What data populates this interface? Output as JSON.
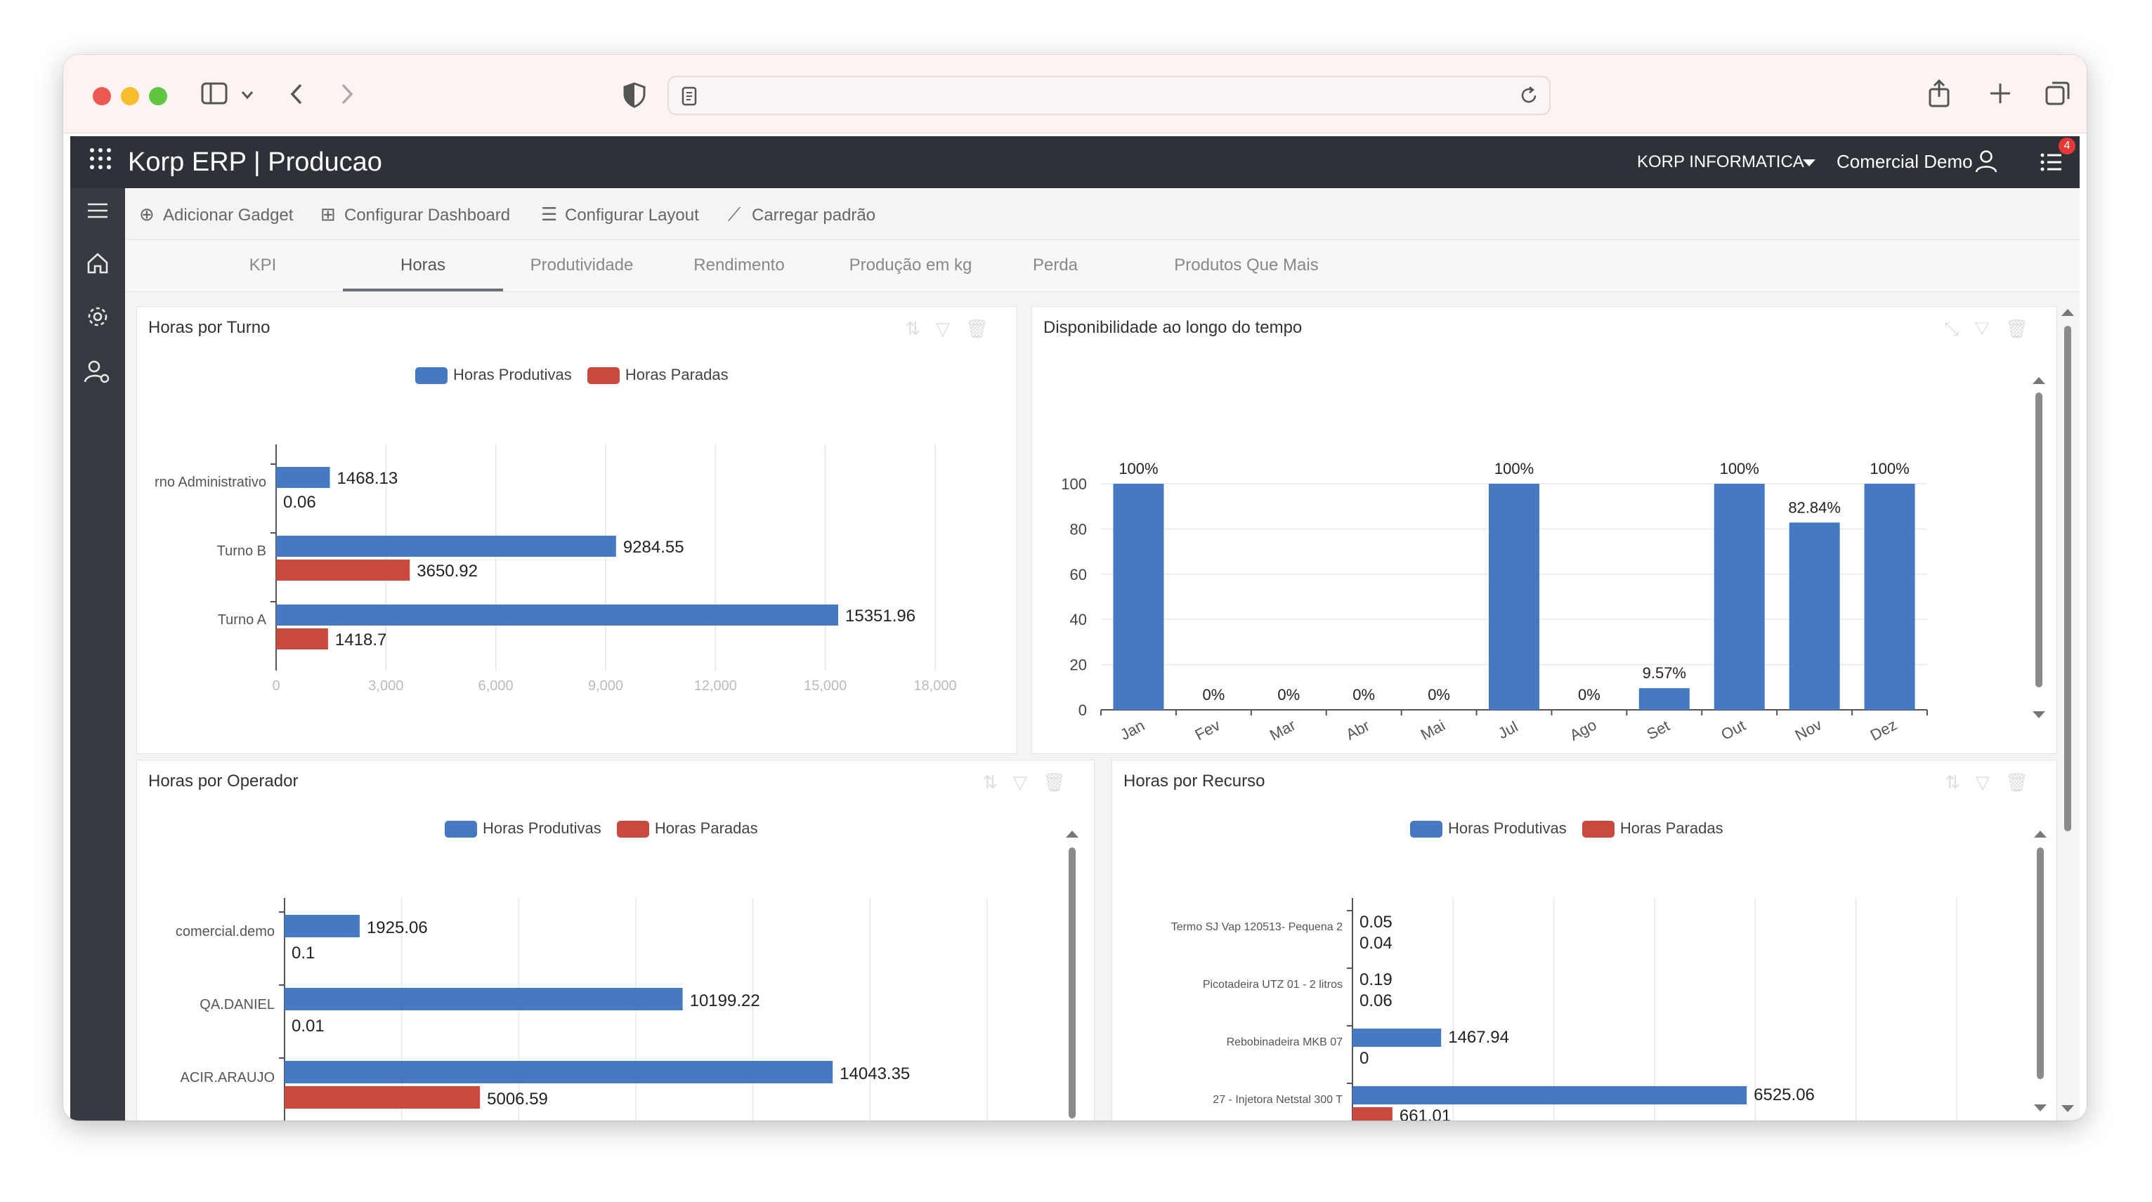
{
  "colors": {
    "productive": "#4579c1",
    "stopped": "#c9493e",
    "appbar": "#2f3138",
    "sidenav": "#383a42"
  },
  "browser": {
    "icons": [
      "sidebar-toggle-icon",
      "back-icon",
      "forward-icon",
      "shield-icon",
      "page-icon",
      "reload-icon",
      "share-icon",
      "new-tab-icon",
      "tabs-overview-icon"
    ]
  },
  "app": {
    "title": "Korp ERP | Producao",
    "company": "KORP INFORMATICA",
    "user": "Comercial Demo",
    "notifications": "4"
  },
  "toolbar": {
    "add_gadget": "Adicionar Gadget",
    "config_dashboard": "Configurar Dashboard",
    "config_layout": "Configurar Layout",
    "load_default": "Carregar padrão"
  },
  "tabs": [
    "KPI",
    "Horas",
    "Produtividade",
    "Rendimento",
    "Produção em kg",
    "Perda",
    "Produtos Que Mais"
  ],
  "active_tab": "Horas",
  "legend": {
    "productive": "Horas Produtivas",
    "stopped": "Horas Paradas"
  },
  "panels": {
    "turno": {
      "title": "Horas por Turno"
    },
    "disponibilidade": {
      "title": "Disponibilidade ao longo do tempo"
    },
    "operador": {
      "title": "Horas por Operador"
    },
    "recurso": {
      "title": "Horas por Recurso"
    }
  },
  "chart_data": [
    {
      "type": "bar",
      "orientation": "horizontal",
      "title": "Horas por Turno",
      "categories": [
        "rno Administrativo",
        "Turno B",
        "Turno A"
      ],
      "series": [
        {
          "name": "Horas Produtivas",
          "values": [
            1468.13,
            9284.55,
            15351.96
          ]
        },
        {
          "name": "Horas Paradas",
          "values": [
            0.06,
            3650.92,
            1418.7
          ]
        }
      ],
      "x_ticks": [
        "0",
        "3,000",
        "6,000",
        "9,000",
        "12,000",
        "15,000",
        "18,000"
      ],
      "xlim": [
        0,
        18000
      ],
      "grid": true,
      "legend": "top-center"
    },
    {
      "type": "bar",
      "title": "Disponibilidade ao longo do tempo",
      "categories": [
        "Jan",
        "Fev",
        "Mar",
        "Abr",
        "Mai",
        "Jul",
        "Ago",
        "Set",
        "Out",
        "Nov",
        "Dez"
      ],
      "values": [
        100,
        0,
        0,
        0,
        0,
        100,
        0,
        9.57,
        100,
        82.84,
        100
      ],
      "data_labels": [
        "100%",
        "0%",
        "0%",
        "0%",
        "0%",
        "100%",
        "0%",
        "9.57%",
        "100%",
        "82.84%",
        "100%"
      ],
      "y_ticks": [
        "0",
        "20",
        "40",
        "60",
        "80",
        "100"
      ],
      "ylim": [
        0,
        100
      ],
      "grid": true
    },
    {
      "type": "bar",
      "orientation": "horizontal",
      "title": "Horas por Operador",
      "categories": [
        "comercial.demo",
        "QA.DANIEL",
        "ACIR.ARAUJO"
      ],
      "series": [
        {
          "name": "Horas Produtivas",
          "values": [
            1925.06,
            10199.22,
            14043.35
          ]
        },
        {
          "name": "Horas Paradas",
          "values": [
            0.1,
            0.01,
            5006.59
          ]
        }
      ],
      "xlim": [
        0,
        18000
      ],
      "grid": true,
      "legend": "top-center"
    },
    {
      "type": "bar",
      "orientation": "horizontal",
      "title": "Horas por Recurso",
      "categories": [
        "Termo SJ Vap 120513- Pequena 2",
        "Picotadeira UTZ 01 - 2 litros",
        "Rebobinadeira MKB 07",
        "27 - Injetora Netstal 300 T"
      ],
      "series": [
        {
          "name": "Horas Produtivas",
          "values": [
            0.05,
            0.19,
            1467.94,
            6525.06
          ]
        },
        {
          "name": "Horas Paradas",
          "values": [
            0.04,
            0.06,
            0,
            661.01
          ]
        }
      ],
      "xlim": [
        0,
        10000
      ],
      "grid": true,
      "legend": "top-center"
    }
  ]
}
